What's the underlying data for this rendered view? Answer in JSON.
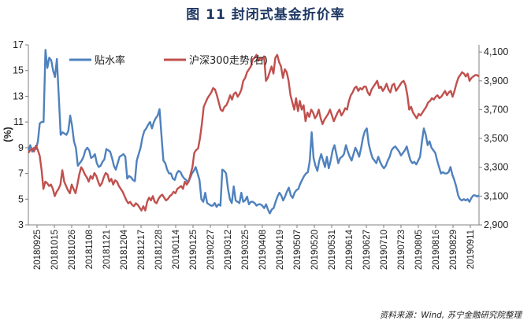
{
  "title": "图 11  封闭式基金折价率",
  "source": "资料来源：Wind, 苏宁金融研究院整理",
  "chart_data": {
    "type": "line",
    "y_left": {
      "label": "(%)",
      "ticks": [
        3,
        5,
        7,
        9,
        11,
        13,
        15,
        17
      ],
      "range": [
        3,
        17
      ]
    },
    "y_right": {
      "ticks": [
        "2,900",
        "3,100",
        "3,300",
        "3,500",
        "3,700",
        "3,900",
        "4,100"
      ],
      "tick_values": [
        2900,
        3100,
        3300,
        3500,
        3700,
        3900,
        4100
      ],
      "range": [
        2900,
        4150
      ]
    },
    "x_tick_labels": [
      "20180925",
      "20181015",
      "20181026",
      "20181108",
      "20181121",
      "20181204",
      "20181217",
      "20181228",
      "20190114",
      "20190125",
      "20190227",
      "20190312",
      "20190325",
      "20190408",
      "20190419",
      "20190507",
      "20190520",
      "20190531",
      "20190614",
      "20190627",
      "20190710",
      "20190723",
      "20190805",
      "20190816",
      "20190829",
      "20190911"
    ],
    "legend_position": "top-left",
    "colors": {
      "discount": "#4f81bd",
      "hs300": "#c0504d"
    },
    "series": [
      {
        "name": "贴水率",
        "axis": "left",
        "values": [
          8.8,
          9.2,
          8.7,
          9.0,
          8.9,
          9.5,
          10.9,
          11.0,
          11.0,
          16.6,
          15.2,
          16.0,
          15.8,
          15.0,
          14.5,
          15.9,
          13.0,
          10.0,
          10.2,
          10.1,
          10.0,
          10.3,
          11.5,
          10.7,
          9.5,
          9.0,
          7.6,
          7.8,
          8.0,
          8.3,
          8.8,
          9.0,
          8.8,
          8.2,
          8.3,
          8.5,
          7.8,
          7.5,
          7.6,
          7.9,
          8.1,
          8.9,
          8.8,
          8.7,
          8.2,
          7.6,
          7.3,
          7.8,
          8.3,
          8.4,
          8.5,
          8.3,
          6.6,
          6.8,
          6.7,
          6.5,
          6.4,
          8.0,
          8.5,
          9.0,
          9.8,
          10.3,
          10.5,
          10.8,
          11.0,
          10.5,
          11.0,
          11.3,
          11.5,
          12.0,
          10.0,
          8.0,
          7.8,
          7.3,
          7.0,
          7.0,
          6.6,
          6.5,
          7.0,
          7.2,
          7.1,
          6.8,
          6.6,
          6.5,
          6.3,
          6.6,
          7.0,
          7.2,
          7.5,
          7.0,
          6.5,
          5.0,
          4.8,
          5.5,
          4.7,
          4.6,
          4.5,
          4.5,
          4.7,
          4.4,
          4.6,
          4.5,
          7.3,
          7.2,
          7.0,
          5.8,
          5.0,
          4.7,
          6.0,
          4.9,
          4.8,
          4.7,
          5.5,
          4.8,
          4.9,
          5.2,
          4.6,
          4.8,
          4.8,
          4.7,
          4.5,
          4.6,
          4.6,
          4.5,
          4.3,
          4.6,
          4.2,
          3.9,
          4.2,
          4.3,
          4.8,
          5.2,
          5.5,
          5.3,
          4.9,
          5.2,
          5.6,
          5.9,
          5.3,
          5.1,
          5.5,
          5.7,
          5.8,
          6.2,
          6.5,
          6.8,
          7.0,
          7.1,
          8.0,
          10.2,
          8.2,
          7.6,
          7.2,
          8.0,
          8.5,
          8.0,
          7.5,
          8.3,
          7.4,
          8.0,
          8.8,
          9.2,
          8.5,
          7.8,
          8.2,
          8.3,
          8.5,
          9.2,
          8.7,
          8.3,
          8.0,
          8.5,
          9.0,
          8.7,
          8.3,
          9.0,
          9.8,
          10.3,
          10.5,
          9.3,
          8.7,
          8.2,
          8.0,
          7.8,
          8.3,
          7.9,
          7.6,
          7.4,
          7.6,
          8.0,
          8.3,
          8.8,
          9.0,
          9.1,
          8.9,
          8.7,
          8.4,
          8.6,
          8.8,
          9.1,
          8.5,
          8.0,
          7.8,
          7.9,
          7.7,
          8.0,
          8.3,
          9.5,
          10.5,
          10.0,
          9.2,
          9.5,
          9.0,
          8.8,
          8.6,
          8.0,
          7.5,
          7.0,
          7.1,
          7.0,
          7.0,
          7.1,
          7.5,
          6.9,
          6.5,
          6.0,
          5.3,
          5.0,
          4.9,
          5.0,
          4.9,
          5.0,
          4.8,
          5.1,
          5.3,
          5.3,
          5.2,
          5.3
        ]
      },
      {
        "name": "沪深300走势(右)",
        "axis": "right",
        "values": [
          3400,
          3420,
          3430,
          3410,
          3450,
          3420,
          3380,
          3280,
          3150,
          3200,
          3190,
          3170,
          3180,
          3150,
          3100,
          3130,
          3150,
          3180,
          3280,
          3200,
          3170,
          3140,
          3120,
          3180,
          3150,
          3120,
          3180,
          3250,
          3300,
          3280,
          3250,
          3230,
          3200,
          3240,
          3220,
          3260,
          3240,
          3200,
          3170,
          3190,
          3230,
          3260,
          3250,
          3200,
          3220,
          3180,
          3210,
          3200,
          3170,
          3150,
          3130,
          3100,
          3070,
          3050,
          3060,
          3040,
          3030,
          3050,
          3040,
          3020,
          3000,
          3030,
          3000,
          3060,
          3090,
          3070,
          3100,
          3060,
          3050,
          3080,
          3100,
          3110,
          3090,
          3070,
          3080,
          3100,
          3110,
          3130,
          3120,
          3150,
          3160,
          3170,
          3150,
          3200,
          3180,
          3200,
          3250,
          3300,
          3400,
          3420,
          3430,
          3500,
          3600,
          3720,
          3750,
          3780,
          3800,
          3820,
          3850,
          3840,
          3800,
          3750,
          3700,
          3690,
          3720,
          3730,
          3760,
          3800,
          3770,
          3810,
          3820,
          3790,
          3810,
          3840,
          3900,
          3920,
          3960,
          3980,
          4000,
          4050,
          4060,
          4080,
          4040,
          4060,
          4050,
          4070,
          3900,
          3920,
          3960,
          4000,
          3950,
          4060,
          4080,
          4030,
          4000,
          3920,
          3980,
          3960,
          3900,
          3800,
          3750,
          3700,
          3780,
          3690,
          3760,
          3700,
          3730,
          3620,
          3680,
          3650,
          3700,
          3680,
          3640,
          3660,
          3700,
          3640,
          3600,
          3630,
          3650,
          3670,
          3700,
          3660,
          3620,
          3650,
          3680,
          3700,
          3660,
          3680,
          3710,
          3700,
          3760,
          3800,
          3820,
          3850,
          3860,
          3830,
          3850,
          3840,
          3860,
          3860,
          3820,
          3800,
          3840,
          3860,
          3880,
          3900,
          3850,
          3860,
          3830,
          3850,
          3880,
          3840,
          3820,
          3870,
          3880,
          3830,
          3850,
          3870,
          3890,
          3900,
          3870,
          3800,
          3700,
          3720,
          3680,
          3660,
          3640,
          3670,
          3660,
          3680,
          3700,
          3720,
          3750,
          3760,
          3780,
          3770,
          3790,
          3800,
          3780,
          3790,
          3810,
          3830,
          3800,
          3820,
          3830,
          3790,
          3830,
          3880,
          3920,
          3940,
          3960,
          3950,
          3930,
          3950,
          3900,
          3920,
          3930,
          3940,
          3940,
          3930
        ]
      }
    ]
  }
}
